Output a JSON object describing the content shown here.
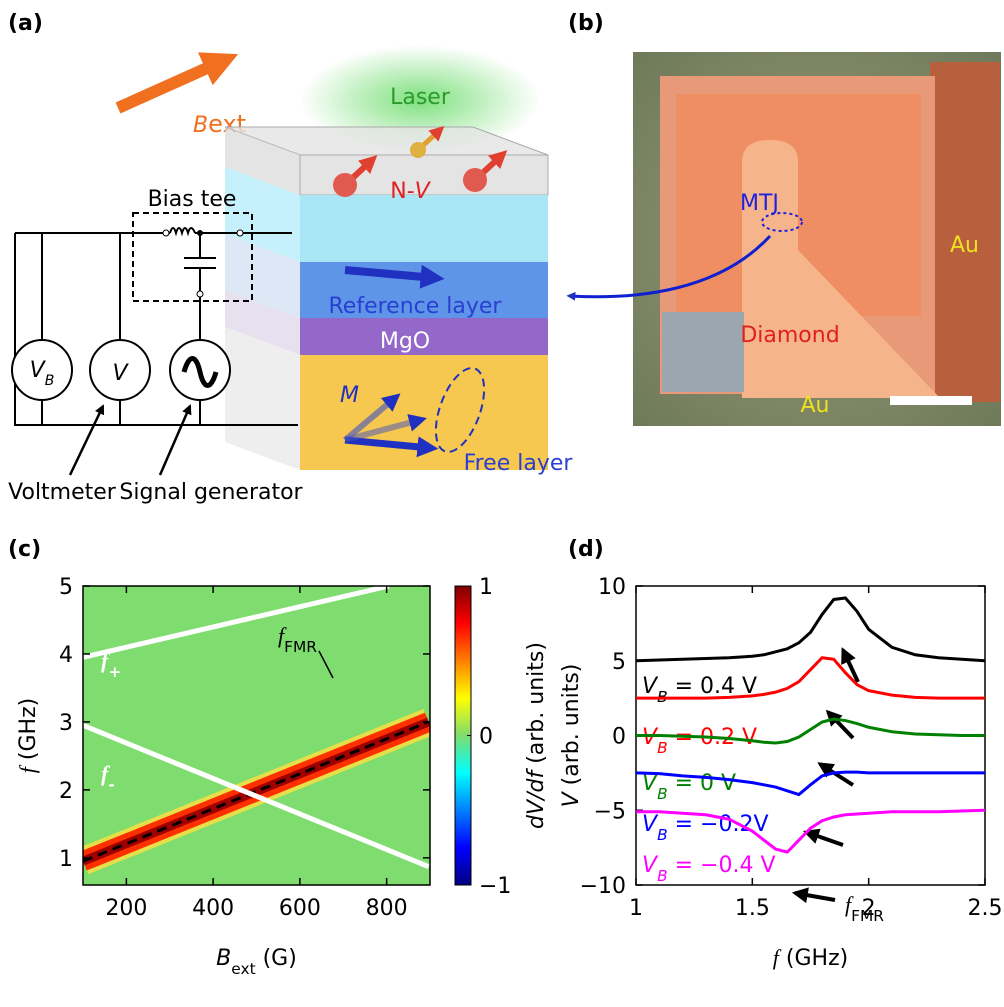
{
  "panel_labels": [
    "(a)",
    "(b)",
    "(c)",
    "(d)"
  ],
  "diagram": {
    "field": [
      "B",
      "ext"
    ],
    "laser": "Laser",
    "nv": [
      "N-",
      "V"
    ],
    "bias_tee": "Bias tee",
    "source_vb": [
      "V",
      "B"
    ],
    "voltmeter_symbol": "V",
    "reference_layer": "Reference layer",
    "barrier": "MgO",
    "magnetization": "M",
    "free_layer": "Free layer",
    "voltmeter": "Voltmeter",
    "signal_generator": "Signal generator"
  },
  "photo": {
    "mtj": "MTJ",
    "au_right": "Au",
    "diamond": "Diamond",
    "au_bottom": "Au"
  },
  "chart_data": [
    {
      "type": "heatmap",
      "xlabel": [
        "B",
        "ext",
        " (G)"
      ],
      "ylabel": [
        "f",
        " (GHz)"
      ],
      "xlim": [
        100,
        900
      ],
      "ylim": [
        0.6,
        5
      ],
      "xticks": [
        200,
        400,
        600,
        800
      ],
      "yticks": [
        1,
        2,
        3,
        4,
        5
      ],
      "background_color": "#7fdc6e",
      "colormap": "jet",
      "lines": [
        {
          "x": [
            100,
            805
          ],
          "values": [
            3.95,
            5
          ],
          "color": "#ffffff"
        },
        {
          "x": [
            100,
            897
          ],
          "values": [
            2.95,
            0.87
          ],
          "color": "#ffffff"
        }
      ],
      "resonance": {
        "x": [
          100,
          897
        ],
        "values": [
          0.95,
          3.0
        ]
      },
      "annotations": {
        "f_plus": [
          "f",
          "+"
        ],
        "f_minus": [
          "f",
          "-"
        ],
        "f_fmr": [
          "f",
          "FMR"
        ]
      },
      "colorbar": {
        "clim": [
          -1,
          1
        ],
        "ticks": [
          {
            "value": -1,
            "label": "−1"
          },
          0,
          1
        ],
        "label": [
          "dV/df",
          " (arb. units)"
        ]
      }
    },
    {
      "type": "line",
      "xlabel": [
        "f",
        " (GHz)"
      ],
      "ylabel": [
        "V",
        " (arb. units)"
      ],
      "xlim": [
        1,
        2.5
      ],
      "ylim": [
        -10,
        10
      ],
      "xticks": [
        1,
        1.5,
        2,
        2.5
      ],
      "yticks": [
        {
          "value": -10,
          "label": "−10"
        },
        {
          "value": -5,
          "label": "−5"
        },
        0,
        5,
        10
      ],
      "x": [
        1,
        1.1,
        1.2,
        1.3,
        1.4,
        1.5,
        1.55,
        1.6,
        1.65,
        1.7,
        1.75,
        1.8,
        1.85,
        1.9,
        1.95,
        2,
        2.1,
        2.2,
        2.3,
        2.4,
        2.5
      ],
      "series": [
        {
          "label": [
            "V",
            "B",
            " = 0.4 V"
          ],
          "color": "#000000",
          "values": [
            5,
            5.05,
            5.1,
            5.15,
            5.2,
            5.3,
            5.4,
            5.6,
            5.8,
            6.2,
            6.9,
            8.1,
            9.1,
            9.2,
            8.3,
            7.1,
            5.9,
            5.4,
            5.2,
            5.1,
            5
          ]
        },
        {
          "label": [
            "V",
            "B",
            " = 0.2 V"
          ],
          "color": "#ff0000",
          "values": [
            2.5,
            2.5,
            2.5,
            2.5,
            2.55,
            2.65,
            2.75,
            2.9,
            3.15,
            3.6,
            4.4,
            5.2,
            5.1,
            4.2,
            3.4,
            3,
            2.7,
            2.55,
            2.5,
            2.5,
            2.5
          ]
        },
        {
          "label": [
            "V",
            "B",
            " = 0 V"
          ],
          "color": "#008000",
          "values": [
            0,
            0,
            -0.05,
            -0.1,
            -0.2,
            -0.35,
            -0.45,
            -0.5,
            -0.4,
            -0.1,
            0.4,
            0.9,
            1.1,
            1,
            0.8,
            0.55,
            0.25,
            0.1,
            0.05,
            0,
            0
          ]
        },
        {
          "label": [
            "V",
            "B",
            " = −0.2V"
          ],
          "color": "#0000ff",
          "values": [
            -2.5,
            -2.55,
            -2.7,
            -2.8,
            -2.95,
            -3.15,
            -3.3,
            -3.45,
            -3.7,
            -3.95,
            -3.3,
            -2.7,
            -2.5,
            -2.45,
            -2.45,
            -2.5,
            -2.5,
            -2.5,
            -2.5,
            -2.5,
            -2.5
          ]
        },
        {
          "label": [
            "V",
            "B",
            " = −0.4 V"
          ],
          "color": "#ff00ff",
          "values": [
            -5.1,
            -5.1,
            -5.2,
            -5.3,
            -5.6,
            -6.4,
            -7,
            -7.6,
            -7.8,
            -7,
            -6.2,
            -5.7,
            -5.45,
            -5.3,
            -5.25,
            -5.2,
            -5.1,
            -5.1,
            -5.1,
            -5.05,
            -5
          ]
        }
      ],
      "annotation": [
        "f",
        "FMR"
      ]
    }
  ]
}
